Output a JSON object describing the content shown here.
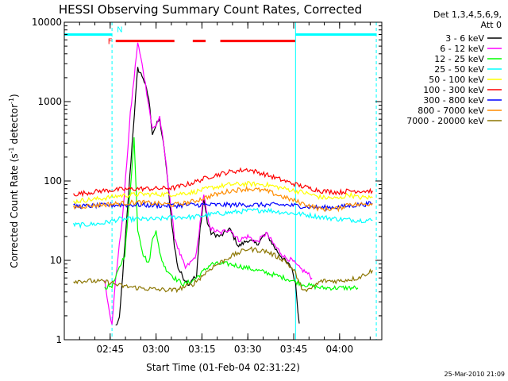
{
  "chart_data": {
    "type": "line",
    "title": "HESSI Observing Summary Count Rates, Corrected",
    "xlabel": "Start Time (01-Feb-04 02:31:22)",
    "ylabel": "Corrected Count Rate (s",
    "ylabel_sup": "-1",
    "ylabel_end": " detector",
    "ylabel_sup2": "-1",
    "ylabel_close": ")",
    "yscale": "log",
    "ylim": [
      1,
      10000
    ],
    "yticks": [
      {
        "v": 1,
        "label": "1"
      },
      {
        "v": 10,
        "label": "10"
      },
      {
        "v": 100,
        "label": "100"
      },
      {
        "v": 1000,
        "label": "1000"
      },
      {
        "v": 10000,
        "label": "10000"
      }
    ],
    "xlim": [
      2.5,
      4.23
    ],
    "xticks": [
      {
        "v": 2.75,
        "label": "02:45"
      },
      {
        "v": 3.0,
        "label": "03:00"
      },
      {
        "v": 3.25,
        "label": "03:15"
      },
      {
        "v": 3.5,
        "label": "03:30"
      },
      {
        "v": 3.75,
        "label": "03:45"
      },
      {
        "v": 4.0,
        "label": "04:00"
      }
    ],
    "legend_header": [
      "Det 1,3,4,5,6,9,",
      "Att 0"
    ],
    "legend_position": "right",
    "series": [
      {
        "name": "3 - 6 keV",
        "color": "#000000",
        "points": [
          [
            2.78,
            1.5
          ],
          [
            2.8,
            1.8
          ],
          [
            2.83,
            15
          ],
          [
            2.87,
            300
          ],
          [
            2.9,
            2600
          ],
          [
            2.93,
            2000
          ],
          [
            2.96,
            1100
          ],
          [
            2.98,
            400
          ],
          [
            3.0,
            500
          ],
          [
            3.02,
            600
          ],
          [
            3.05,
            200
          ],
          [
            3.08,
            40
          ],
          [
            3.1,
            15
          ],
          [
            3.12,
            8
          ],
          [
            3.15,
            6
          ],
          [
            3.18,
            5
          ],
          [
            3.2,
            6
          ],
          [
            3.22,
            6
          ],
          [
            3.24,
            25
          ],
          [
            3.26,
            60
          ],
          [
            3.28,
            30
          ],
          [
            3.3,
            22
          ],
          [
            3.35,
            20
          ],
          [
            3.4,
            25
          ],
          [
            3.45,
            15
          ],
          [
            3.5,
            18
          ],
          [
            3.55,
            16
          ],
          [
            3.6,
            22
          ],
          [
            3.65,
            14
          ],
          [
            3.7,
            10
          ],
          [
            3.74,
            8
          ],
          [
            3.76,
            5
          ],
          [
            3.78,
            1.6
          ]
        ]
      },
      {
        "name": "6 - 12 keV",
        "color": "#ff00ff",
        "points": [
          [
            2.72,
            5.5
          ],
          [
            2.76,
            1.5
          ],
          [
            2.78,
            6
          ],
          [
            2.82,
            40
          ],
          [
            2.86,
            700
          ],
          [
            2.9,
            5500
          ],
          [
            2.93,
            2500
          ],
          [
            2.96,
            900
          ],
          [
            2.98,
            450
          ],
          [
            3.0,
            500
          ],
          [
            3.02,
            650
          ],
          [
            3.05,
            200
          ],
          [
            3.08,
            50
          ],
          [
            3.1,
            20
          ],
          [
            3.13,
            12
          ],
          [
            3.16,
            8
          ],
          [
            3.18,
            9
          ],
          [
            3.2,
            10
          ],
          [
            3.22,
            12
          ],
          [
            3.24,
            30
          ],
          [
            3.26,
            65
          ],
          [
            3.28,
            35
          ],
          [
            3.3,
            25
          ],
          [
            3.35,
            22
          ],
          [
            3.4,
            25
          ],
          [
            3.45,
            18
          ],
          [
            3.5,
            20
          ],
          [
            3.55,
            17
          ],
          [
            3.6,
            22
          ],
          [
            3.65,
            15
          ],
          [
            3.7,
            11
          ],
          [
            3.74,
            10
          ],
          [
            3.78,
            8
          ],
          [
            3.82,
            7
          ],
          [
            3.85,
            6
          ]
        ]
      },
      {
        "name": "12 - 25 keV",
        "color": "#00ff00",
        "points": [
          [
            2.72,
            4.5
          ],
          [
            2.76,
            4.8
          ],
          [
            2.78,
            6
          ],
          [
            2.8,
            8
          ],
          [
            2.83,
            12
          ],
          [
            2.86,
            80
          ],
          [
            2.88,
            350
          ],
          [
            2.9,
            25
          ],
          [
            2.93,
            12
          ],
          [
            2.96,
            9
          ],
          [
            2.98,
            18
          ],
          [
            3.0,
            25
          ],
          [
            3.02,
            12
          ],
          [
            3.05,
            8
          ],
          [
            3.1,
            6
          ],
          [
            3.15,
            5
          ],
          [
            3.2,
            5.5
          ],
          [
            3.25,
            7
          ],
          [
            3.3,
            9
          ],
          [
            3.4,
            9
          ],
          [
            3.5,
            8
          ],
          [
            3.6,
            7
          ],
          [
            3.7,
            6
          ],
          [
            3.8,
            5
          ],
          [
            3.9,
            4.5
          ],
          [
            4.0,
            4.5
          ],
          [
            4.1,
            4.5
          ]
        ]
      },
      {
        "name": "25 - 50 keV",
        "color": "#00ffff",
        "points": [
          [
            2.55,
            28
          ],
          [
            2.6,
            28
          ],
          [
            2.7,
            29
          ],
          [
            2.8,
            33
          ],
          [
            2.9,
            33
          ],
          [
            3.0,
            33
          ],
          [
            3.1,
            35
          ],
          [
            3.2,
            35
          ],
          [
            3.3,
            38
          ],
          [
            3.4,
            40
          ],
          [
            3.5,
            42
          ],
          [
            3.6,
            43
          ],
          [
            3.7,
            40
          ],
          [
            3.8,
            38
          ],
          [
            3.9,
            35
          ],
          [
            4.0,
            33
          ],
          [
            4.1,
            32
          ],
          [
            4.18,
            32
          ]
        ]
      },
      {
        "name": "50 - 100 keV",
        "color": "#ffff00",
        "points": [
          [
            2.55,
            55
          ],
          [
            2.6,
            57
          ],
          [
            2.7,
            60
          ],
          [
            2.8,
            65
          ],
          [
            2.9,
            68
          ],
          [
            3.0,
            68
          ],
          [
            3.1,
            68
          ],
          [
            3.2,
            72
          ],
          [
            3.3,
            82
          ],
          [
            3.4,
            90
          ],
          [
            3.5,
            92
          ],
          [
            3.6,
            90
          ],
          [
            3.7,
            80
          ],
          [
            3.8,
            72
          ],
          [
            3.9,
            62
          ],
          [
            4.0,
            60
          ],
          [
            4.05,
            68
          ],
          [
            4.1,
            62
          ],
          [
            4.18,
            62
          ]
        ]
      },
      {
        "name": "100 - 300 keV",
        "color": "#ff0000",
        "points": [
          [
            2.55,
            68
          ],
          [
            2.6,
            70
          ],
          [
            2.7,
            75
          ],
          [
            2.8,
            78
          ],
          [
            2.9,
            80
          ],
          [
            3.0,
            80
          ],
          [
            3.1,
            82
          ],
          [
            3.2,
            95
          ],
          [
            3.3,
            115
          ],
          [
            3.4,
            130
          ],
          [
            3.5,
            140
          ],
          [
            3.6,
            120
          ],
          [
            3.7,
            100
          ],
          [
            3.8,
            85
          ],
          [
            3.9,
            75
          ],
          [
            4.0,
            72
          ],
          [
            4.05,
            75
          ],
          [
            4.1,
            75
          ],
          [
            4.18,
            75
          ]
        ]
      },
      {
        "name": "300 - 800 keV",
        "color": "#0000ff",
        "points": [
          [
            2.55,
            48
          ],
          [
            2.6,
            48
          ],
          [
            2.7,
            49
          ],
          [
            2.8,
            50
          ],
          [
            2.9,
            50
          ],
          [
            3.0,
            49
          ],
          [
            3.1,
            49
          ],
          [
            3.2,
            50
          ],
          [
            3.3,
            50
          ],
          [
            3.4,
            50
          ],
          [
            3.5,
            50
          ],
          [
            3.6,
            50
          ],
          [
            3.7,
            50
          ],
          [
            3.8,
            48
          ],
          [
            3.9,
            46
          ],
          [
            4.0,
            47
          ],
          [
            4.1,
            50
          ],
          [
            4.18,
            52
          ]
        ]
      },
      {
        "name": "800 - 7000 keV",
        "color": "#ff8c00",
        "points": [
          [
            2.55,
            47
          ],
          [
            2.6,
            48
          ],
          [
            2.7,
            50
          ],
          [
            2.8,
            52
          ],
          [
            2.9,
            54
          ],
          [
            3.0,
            52
          ],
          [
            3.1,
            50
          ],
          [
            3.2,
            55
          ],
          [
            3.3,
            65
          ],
          [
            3.4,
            75
          ],
          [
            3.5,
            80
          ],
          [
            3.6,
            75
          ],
          [
            3.7,
            62
          ],
          [
            3.8,
            52
          ],
          [
            3.9,
            44
          ],
          [
            4.0,
            45
          ],
          [
            4.05,
            52
          ],
          [
            4.1,
            50
          ],
          [
            4.18,
            52
          ]
        ]
      },
      {
        "name": "7000 - 20000 keV",
        "color": "#8b7500",
        "points": [
          [
            2.55,
            5.5
          ],
          [
            2.65,
            5.5
          ],
          [
            2.75,
            5.3
          ],
          [
            2.8,
            4.8
          ],
          [
            2.9,
            4.5
          ],
          [
            3.0,
            4.3
          ],
          [
            3.1,
            4.2
          ],
          [
            3.2,
            5
          ],
          [
            3.3,
            8
          ],
          [
            3.4,
            11
          ],
          [
            3.5,
            14
          ],
          [
            3.6,
            13
          ],
          [
            3.7,
            10
          ],
          [
            3.76,
            7
          ],
          [
            3.78,
            5
          ],
          [
            3.82,
            4
          ],
          [
            3.9,
            5.5
          ],
          [
            4.0,
            5.5
          ],
          [
            4.1,
            6
          ],
          [
            4.18,
            7.5
          ]
        ]
      }
    ],
    "state_bars": [
      {
        "label": "F",
        "color": "#ff0000",
        "y": 5800,
        "segments": [
          [
            2.78,
            3.1
          ],
          [
            3.2,
            3.27
          ],
          [
            3.35,
            3.76
          ]
        ]
      },
      {
        "label": "N",
        "color": "#00ffff",
        "y": 7000,
        "segments": [
          [
            2.5,
            2.76
          ],
          [
            3.76,
            4.2
          ]
        ]
      }
    ],
    "vertical_lines": [
      {
        "x": 2.76,
        "color": "#00ffff",
        "style": "dashed"
      },
      {
        "x": 3.76,
        "color": "#00ffff",
        "style": "solid"
      },
      {
        "x": 4.2,
        "color": "#00ffff",
        "style": "dashed"
      },
      {
        "x": 2.5,
        "color": "#00ffff",
        "style": "solid"
      }
    ],
    "timestamp": "25-Mar-2010 21:09"
  }
}
